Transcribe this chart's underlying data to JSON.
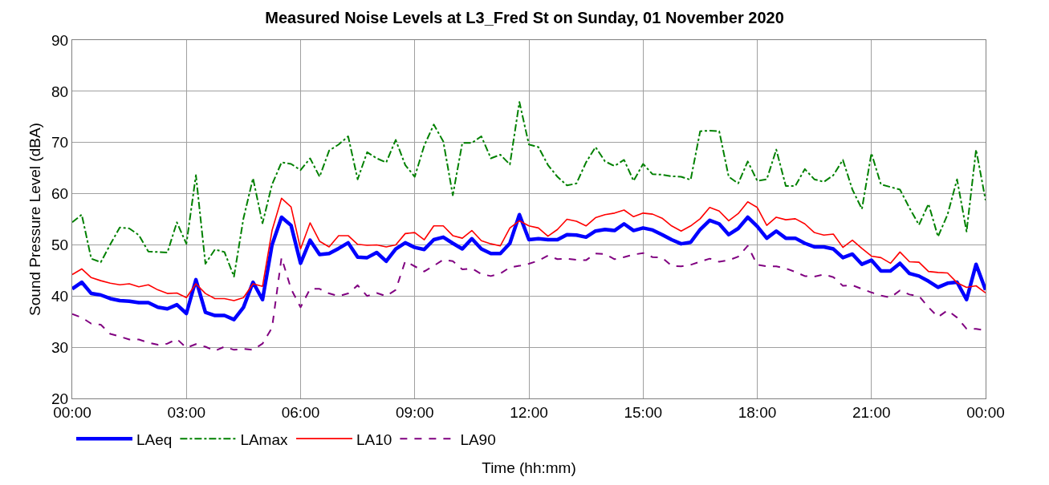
{
  "chart_data": {
    "type": "line",
    "title": "Measured Noise Levels at L3_Fred St on Sunday, 01 November 2020",
    "xlabel": "Time (hh:mm)",
    "ylabel": "Sound Pressure Level (dBA)",
    "x": [
      0,
      0.25,
      0.5,
      0.75,
      1,
      1.25,
      1.5,
      1.75,
      2,
      2.25,
      2.5,
      2.75,
      3,
      3.25,
      3.5,
      3.75,
      4,
      4.25,
      4.5,
      4.75,
      5,
      5.25,
      5.5,
      5.75,
      6,
      6.25,
      6.5,
      6.75,
      7,
      7.25,
      7.5,
      7.75,
      8,
      8.25,
      8.5,
      8.75,
      9,
      9.25,
      9.5,
      9.75,
      10,
      10.25,
      10.5,
      10.75,
      11,
      11.25,
      11.5,
      11.75,
      12,
      12.25,
      12.5,
      12.75,
      13,
      13.25,
      13.5,
      13.75,
      14,
      14.25,
      14.5,
      14.75,
      15,
      15.25,
      15.5,
      15.75,
      16,
      16.25,
      16.5,
      16.75,
      17,
      17.25,
      17.5,
      17.75,
      18,
      18.25,
      18.5,
      18.75,
      19,
      19.25,
      19.5,
      19.75,
      20,
      20.25,
      20.5,
      20.75,
      21,
      21.25,
      21.5,
      21.75,
      22,
      22.25,
      22.5,
      22.75,
      23,
      23.25,
      23.5,
      23.75,
      24
    ],
    "xlim": [
      0,
      24
    ],
    "xticks": [
      {
        "value": 0,
        "label": "00:00"
      },
      {
        "value": 3,
        "label": "03:00"
      },
      {
        "value": 6,
        "label": "06:00"
      },
      {
        "value": 9,
        "label": "09:00"
      },
      {
        "value": 12,
        "label": "12:00"
      },
      {
        "value": 15,
        "label": "15:00"
      },
      {
        "value": 18,
        "label": "18:00"
      },
      {
        "value": 21,
        "label": "21:00"
      },
      {
        "value": 24,
        "label": "00:00"
      }
    ],
    "ylim": [
      20,
      90
    ],
    "yticks": [
      20,
      30,
      40,
      50,
      60,
      70,
      80,
      90
    ],
    "grid": true,
    "legend": "bottom left",
    "series": [
      {
        "name": "LAeq",
        "color": "#0000ff",
        "line_style": "solid",
        "values": [
          41.4,
          42.7,
          40.5,
          40.2,
          39.5,
          39.1,
          39.0,
          38.7,
          38.7,
          37.8,
          37.5,
          38.3,
          36.6,
          43.2,
          36.8,
          36.2,
          36.2,
          35.4,
          37.8,
          42.7,
          39.3,
          50.0,
          55.4,
          53.8,
          46.4,
          50.9,
          48.1,
          48.3,
          49.3,
          50.4,
          47.6,
          47.5,
          48.5,
          46.8,
          49.2,
          50.4,
          49.5,
          49.1,
          51.0,
          51.5,
          50.3,
          49.2,
          51.2,
          49.2,
          48.3,
          48.3,
          50.3,
          55.9,
          51.0,
          51.2,
          51.0,
          51.0,
          52.0,
          51.9,
          51.5,
          52.7,
          53.0,
          52.8,
          54.1,
          52.8,
          53.3,
          52.9,
          52.0,
          51.0,
          50.2,
          50.5,
          53.0,
          54.8,
          54.1,
          52.0,
          53.2,
          55.4,
          53.6,
          51.3,
          52.7,
          51.3,
          51.3,
          50.3,
          49.6,
          49.6,
          49.2,
          47.5,
          48.2,
          46.2,
          47.0,
          44.9,
          44.9,
          46.4,
          44.4,
          43.9,
          42.9,
          41.7,
          42.5,
          42.7,
          39.3,
          46.2,
          41.2
        ]
      },
      {
        "name": "LAmax",
        "color": "#008000",
        "line_style": "dashdot",
        "values": [
          54.4,
          55.9,
          47.3,
          46.6,
          50.1,
          53.4,
          53.2,
          51.9,
          48.7,
          48.6,
          48.5,
          54.4,
          50.2,
          63.6,
          46.3,
          49.1,
          48.6,
          43.8,
          55.2,
          63.0,
          54.2,
          61.8,
          66.1,
          65.8,
          64.6,
          66.9,
          63.3,
          68.4,
          69.6,
          71.2,
          62.8,
          68.1,
          66.9,
          66.1,
          70.5,
          65.6,
          63.3,
          69.4,
          73.5,
          70.2,
          59.7,
          69.9,
          69.9,
          71.2,
          66.9,
          67.6,
          65.7,
          77.9,
          69.6,
          69.1,
          65.6,
          63.3,
          61.6,
          62.0,
          66.1,
          69.1,
          66.3,
          65.4,
          66.6,
          62.5,
          65.8,
          63.8,
          63.7,
          63.4,
          63.3,
          62.7,
          72.2,
          72.3,
          72.2,
          63.3,
          62.0,
          66.3,
          62.5,
          62.8,
          68.6,
          61.5,
          61.5,
          64.8,
          62.8,
          62.3,
          63.6,
          66.6,
          60.8,
          57.0,
          67.9,
          61.8,
          61.3,
          60.8,
          57.2,
          53.9,
          58.0,
          51.6,
          55.9,
          62.8,
          52.6,
          68.6,
          58.7
        ]
      },
      {
        "name": "LA10",
        "color": "#ff0000",
        "line_style": "solid",
        "values": [
          44.2,
          45.3,
          43.6,
          43.0,
          42.5,
          42.2,
          42.4,
          41.8,
          42.2,
          41.2,
          40.5,
          40.6,
          39.7,
          42.4,
          40.5,
          39.5,
          39.5,
          39.1,
          39.7,
          42.4,
          41.9,
          52.8,
          59.1,
          57.4,
          49.2,
          54.3,
          50.7,
          49.6,
          51.8,
          51.8,
          50.1,
          49.9,
          50.0,
          49.6,
          50.0,
          52.2,
          52.4,
          51.0,
          53.7,
          53.7,
          51.8,
          51.3,
          52.8,
          50.8,
          50.2,
          49.8,
          53.3,
          54.7,
          53.7,
          53.3,
          51.7,
          53.0,
          55.0,
          54.6,
          53.7,
          55.3,
          55.9,
          56.2,
          56.8,
          55.5,
          56.2,
          56.0,
          55.2,
          53.7,
          52.7,
          53.7,
          55.1,
          57.3,
          56.6,
          54.7,
          56.1,
          58.4,
          57.3,
          53.8,
          55.4,
          54.9,
          55.1,
          54.1,
          52.4,
          51.9,
          52.1,
          49.5,
          50.9,
          49.3,
          47.8,
          47.5,
          46.4,
          48.6,
          46.7,
          46.6,
          44.8,
          44.6,
          44.5,
          42.6,
          41.7,
          42.0,
          40.6
        ]
      },
      {
        "name": "LA90",
        "color": "#800080",
        "line_style": "dashed",
        "values": [
          36.5,
          35.8,
          34.6,
          34.4,
          32.6,
          32.1,
          31.5,
          31.5,
          30.9,
          30.5,
          30.7,
          31.6,
          29.9,
          30.6,
          30.1,
          29.3,
          30.1,
          29.5,
          29.7,
          29.5,
          30.7,
          33.8,
          47.5,
          41.4,
          37.8,
          41.4,
          41.4,
          40.5,
          40.0,
          40.5,
          42.1,
          40.0,
          40.6,
          40.0,
          41.2,
          46.8,
          45.8,
          44.8,
          45.9,
          47.1,
          46.8,
          45.2,
          45.4,
          44.3,
          43.9,
          44.4,
          45.6,
          45.9,
          46.3,
          46.9,
          47.9,
          47.2,
          47.3,
          47.1,
          47.0,
          48.3,
          48.2,
          47.2,
          47.6,
          48.1,
          48.4,
          47.6,
          47.5,
          45.9,
          45.8,
          46.1,
          46.7,
          47.3,
          46.7,
          47.0,
          47.7,
          49.8,
          46.1,
          45.8,
          45.8,
          45.4,
          44.7,
          43.9,
          43.8,
          44.2,
          43.7,
          42.0,
          42.1,
          41.4,
          40.7,
          40.1,
          39.7,
          41.1,
          40.3,
          40.0,
          37.8,
          35.9,
          37.2,
          35.8,
          33.6,
          33.6,
          33.3
        ]
      }
    ]
  }
}
